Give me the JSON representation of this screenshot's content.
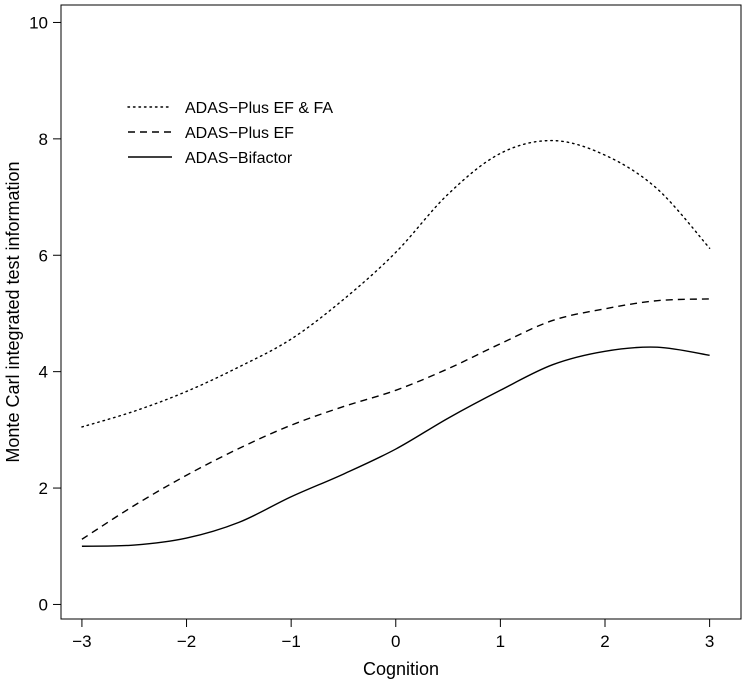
{
  "chart_data": {
    "type": "line",
    "xlabel": "Cognition",
    "ylabel": "Monte Carl integrated test information",
    "xlim": [
      -3.2,
      3.3
    ],
    "ylim": [
      -0.25,
      10.3
    ],
    "xticks": [
      -3,
      -2,
      -1,
      0,
      1,
      2,
      3
    ],
    "xtick_labels": [
      "−3",
      "−2",
      "−1",
      "0",
      "1",
      "2",
      "3"
    ],
    "yticks": [
      0,
      2,
      4,
      6,
      8,
      10
    ],
    "ytick_labels": [
      "0",
      "2",
      "4",
      "6",
      "8",
      "10"
    ],
    "legend_position": "top-left",
    "grid": false,
    "x": [
      -3,
      -2.5,
      -2,
      -1.5,
      -1,
      -0.5,
      0,
      0.5,
      1,
      1.5,
      2,
      2.5,
      3
    ],
    "series": [
      {
        "name": "ADAS−Plus EF & FA",
        "style": "dotted",
        "values": [
          3.05,
          3.32,
          3.66,
          4.08,
          4.56,
          5.24,
          6.05,
          7.05,
          7.75,
          7.97,
          7.72,
          7.14,
          6.12
        ]
      },
      {
        "name": "ADAS−Plus EF",
        "style": "dashed",
        "values": [
          1.12,
          1.7,
          2.22,
          2.68,
          3.08,
          3.4,
          3.68,
          4.05,
          4.48,
          4.88,
          5.08,
          5.22,
          5.25
        ]
      },
      {
        "name": "ADAS−Bifactor",
        "style": "solid",
        "values": [
          1.0,
          1.02,
          1.14,
          1.41,
          1.85,
          2.24,
          2.67,
          3.2,
          3.68,
          4.12,
          4.35,
          4.42,
          4.28
        ]
      }
    ]
  }
}
